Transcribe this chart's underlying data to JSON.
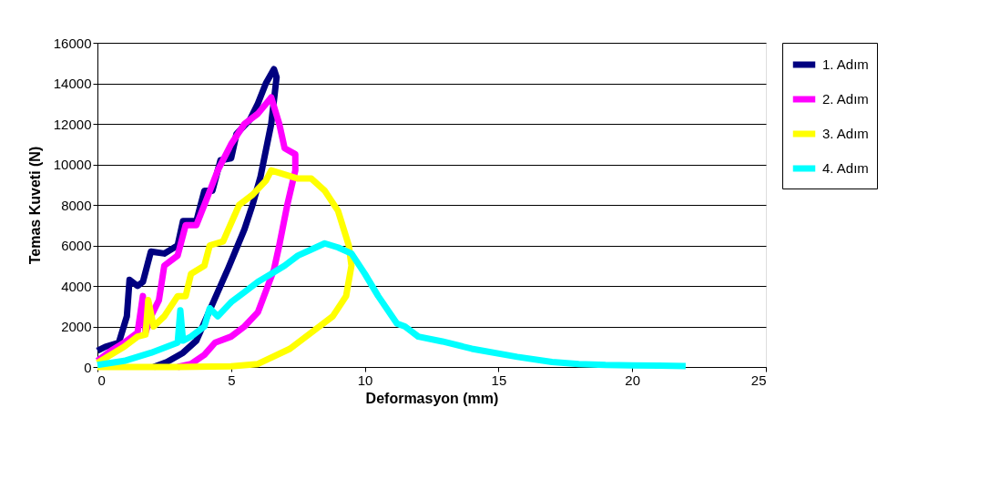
{
  "chart_data": {
    "type": "line",
    "xlabel": "Deformasyon (mm)",
    "ylabel": "Temas Kuveti (N)",
    "xlim": [
      0,
      25
    ],
    "xticks": [
      0,
      5,
      10,
      15,
      20,
      25
    ],
    "ylim": [
      0,
      16000
    ],
    "yticks": [
      0,
      2000,
      4000,
      6000,
      8000,
      10000,
      12000,
      14000,
      16000
    ],
    "grid": "y",
    "legend": "right",
    "marker": "none",
    "line_style": "solid",
    "series": [
      {
        "name": "1. Adım",
        "color": "#000080",
        "x": [
          0,
          0.3,
          0.8,
          1.1,
          1.2,
          1.5,
          1.7,
          2,
          2.5,
          3,
          3.2,
          3.7,
          4,
          4.3,
          4.6,
          5,
          5.2,
          5.7,
          6,
          6.3,
          6.6,
          6.7,
          6.5,
          6.1,
          5.8,
          5.5,
          4.9,
          4.5,
          4.1,
          3.7,
          3.2,
          2.6,
          2.1
        ],
        "values": [
          800,
          1000,
          1200,
          2500,
          4300,
          4000,
          4200,
          5700,
          5600,
          6000,
          7200,
          7200,
          8700,
          8700,
          10200,
          10300,
          11500,
          12200,
          13000,
          14000,
          14700,
          14300,
          12000,
          9400,
          8000,
          6800,
          4900,
          3700,
          2500,
          1300,
          700,
          250,
          0
        ]
      },
      {
        "name": "2. Adım",
        "color": "#ff00ff",
        "x": [
          0,
          0.5,
          1,
          1.5,
          1.7,
          1.8,
          2,
          2.3,
          2.5,
          3,
          3.3,
          3.7,
          4,
          4.5,
          5,
          5.5,
          6,
          6.5,
          6.8,
          7,
          7.4,
          7.4,
          7.1,
          6.8,
          6.6,
          6,
          5.5,
          5,
          4.4,
          4,
          3.5,
          3
        ],
        "values": [
          300,
          800,
          1200,
          1700,
          3500,
          1700,
          2500,
          3300,
          5000,
          5500,
          7000,
          7000,
          8000,
          9700,
          11000,
          12000,
          12500,
          13300,
          12000,
          10800,
          10500,
          9700,
          8000,
          6000,
          4800,
          2700,
          2000,
          1500,
          1200,
          600,
          150,
          0
        ]
      },
      {
        "name": "3. Adım",
        "color": "#ffff00",
        "x": [
          0,
          1,
          1.5,
          1.8,
          1.9,
          2.1,
          2.5,
          3,
          3.3,
          3.5,
          4,
          4.2,
          4.7,
          5,
          5.3,
          5.8,
          6.3,
          6.5,
          7,
          7.5,
          8,
          8.5,
          9,
          9.4,
          9.5,
          9.3,
          8.8,
          8.3,
          7.2,
          6,
          5,
          3,
          0
        ],
        "values": [
          200,
          1000,
          1500,
          1600,
          3300,
          2000,
          2500,
          3500,
          3500,
          4600,
          5000,
          6000,
          6200,
          7100,
          8000,
          8500,
          9200,
          9700,
          9500,
          9300,
          9300,
          8700,
          7700,
          6000,
          5000,
          3500,
          2500,
          2000,
          900,
          150,
          30,
          0,
          0
        ]
      },
      {
        "name": "4. Adım",
        "color": "#00ffff",
        "x": [
          0,
          1,
          2,
          3,
          3.1,
          3.2,
          3.5,
          4,
          4.2,
          4.5,
          5,
          5.5,
          6,
          6.5,
          7,
          7.5,
          8,
          8.5,
          9,
          9.5,
          10,
          10.5,
          11.2,
          11.5,
          12,
          12.9,
          14,
          15.7,
          17,
          18,
          19,
          20,
          21,
          22
        ],
        "values": [
          100,
          300,
          700,
          1200,
          2800,
          1300,
          1500,
          2000,
          2900,
          2500,
          3200,
          3700,
          4200,
          4600,
          5000,
          5500,
          5800,
          6100,
          5900,
          5600,
          4600,
          3500,
          2150,
          2000,
          1500,
          1260,
          900,
          500,
          250,
          150,
          100,
          80,
          70,
          50
        ]
      }
    ]
  }
}
